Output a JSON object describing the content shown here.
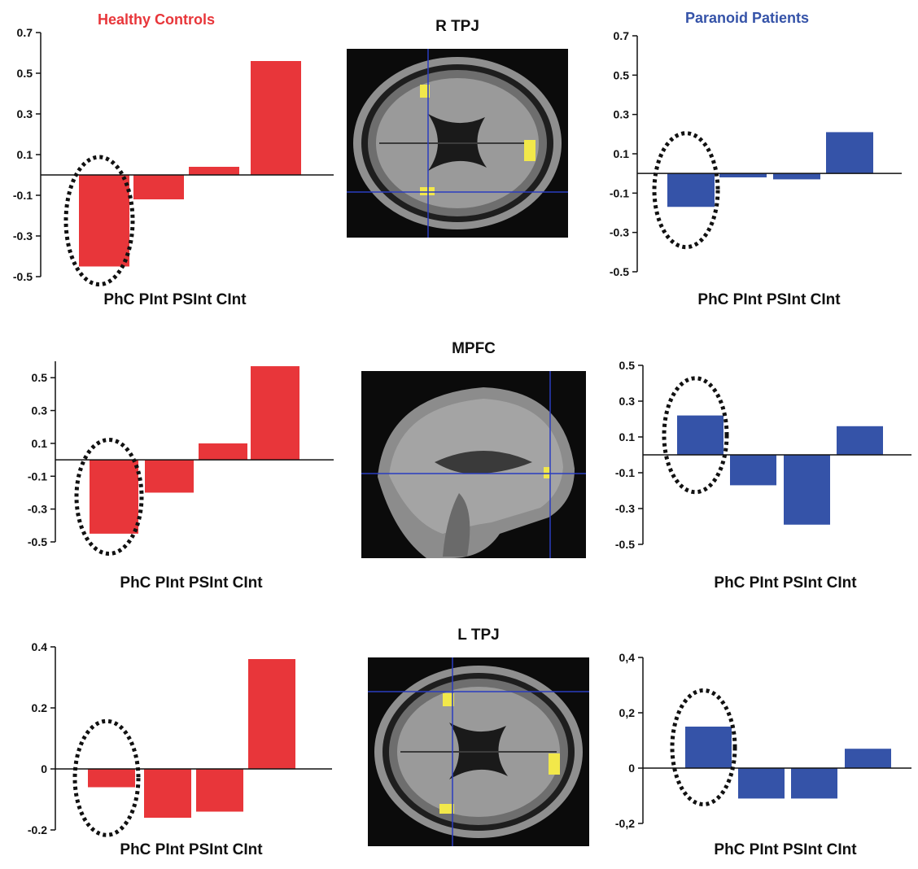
{
  "headers": {
    "healthy": "Healthy Controls",
    "paranoid": "Paranoid Patients"
  },
  "colors": {
    "healthy": "#e8363a",
    "paranoid": "#3553a8",
    "highlight": "#111111"
  },
  "regions": [
    "R TPJ",
    "MPFC",
    "L TPJ"
  ],
  "axis_caption": "PhC PInt PSInt CInt",
  "chart_data": [
    {
      "type": "bar",
      "group": "Healthy Controls",
      "region": "R TPJ",
      "categories": [
        "PhC",
        "PInt",
        "PSInt",
        "CInt"
      ],
      "values": [
        -0.45,
        -0.12,
        0.04,
        0.56
      ],
      "ylim": [
        -0.5,
        0.7
      ],
      "yticks": [
        "-0.5",
        "-0.3",
        "-0.1",
        "0.1",
        "0.3",
        "0.5",
        "0.7"
      ],
      "ytick_values": [
        -0.5,
        -0.3,
        -0.1,
        0.1,
        0.3,
        0.5,
        0.7
      ],
      "xlabel": "PhC PInt PSInt CInt",
      "highlight_index": 0
    },
    {
      "type": "bar",
      "group": "Paranoid Patients",
      "region": "R TPJ",
      "categories": [
        "PhC",
        "PInt",
        "PSInt",
        "CInt"
      ],
      "values": [
        -0.17,
        -0.02,
        -0.03,
        0.21
      ],
      "ylim": [
        -0.5,
        0.7
      ],
      "yticks": [
        "-0.5",
        "-0.3",
        "-0.1",
        "0.1",
        "0.3",
        "0.5",
        "0.7"
      ],
      "ytick_values": [
        -0.5,
        -0.3,
        -0.1,
        0.1,
        0.3,
        0.5,
        0.7
      ],
      "xlabel": "PhC PInt PSInt CInt",
      "highlight_index": 0
    },
    {
      "type": "bar",
      "group": "Healthy Controls",
      "region": "MPFC",
      "categories": [
        "PhC",
        "PInt",
        "PSInt",
        "CInt"
      ],
      "values": [
        -0.45,
        -0.2,
        0.1,
        0.57
      ],
      "ylim": [
        -0.5,
        0.6
      ],
      "yticks": [
        "-0.5",
        "-0.3",
        "-0.1",
        "0.1",
        "0.3",
        "0.5"
      ],
      "ytick_values": [
        -0.5,
        -0.3,
        -0.1,
        0.1,
        0.3,
        0.5
      ],
      "xlabel": "PhC PInt PSInt CInt",
      "highlight_index": 0
    },
    {
      "type": "bar",
      "group": "Paranoid Patients",
      "region": "MPFC",
      "categories": [
        "PhC",
        "PInt",
        "PSInt",
        "CInt"
      ],
      "values": [
        0.22,
        -0.17,
        -0.39,
        0.16
      ],
      "ylim": [
        -0.5,
        0.5
      ],
      "yticks": [
        "-0.5",
        "-0.3",
        "-0.1",
        "0.1",
        "0.3",
        "0.5"
      ],
      "ytick_values": [
        -0.5,
        -0.3,
        -0.1,
        0.1,
        0.3,
        0.5
      ],
      "xlabel": "PhC PInt PSInt CInt",
      "highlight_index": 0
    },
    {
      "type": "bar",
      "group": "Healthy Controls",
      "region": "L TPJ",
      "categories": [
        "PhC",
        "PInt",
        "PSInt",
        "CInt"
      ],
      "values": [
        -0.06,
        -0.16,
        -0.14,
        0.36
      ],
      "ylim": [
        -0.2,
        0.4
      ],
      "yticks": [
        "-0.2",
        "0",
        "0.2",
        "0.4"
      ],
      "ytick_values": [
        -0.2,
        0,
        0.2,
        0.4
      ],
      "xlabel": "PhC PInt PSInt CInt",
      "highlight_index": 0
    },
    {
      "type": "bar",
      "group": "Paranoid Patients",
      "region": "L TPJ",
      "categories": [
        "PhC",
        "PInt",
        "PSInt",
        "CInt"
      ],
      "values": [
        0.15,
        -0.11,
        -0.11,
        0.07
      ],
      "ylim": [
        -0.2,
        0.4
      ],
      "yticks": [
        "-0,2",
        "0",
        "0,2",
        "0,4"
      ],
      "ytick_values": [
        -0.2,
        0,
        0.2,
        0.4
      ],
      "xlabel": "PhC PInt PSInt CInt",
      "highlight_index": 0
    }
  ]
}
